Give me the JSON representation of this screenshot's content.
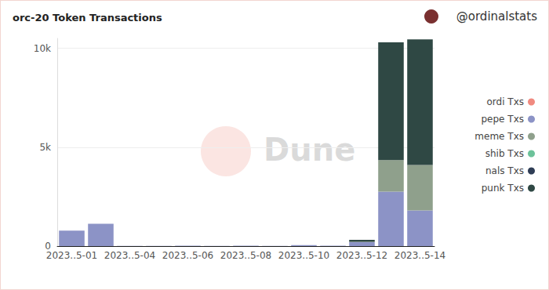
{
  "chart_data": {
    "type": "bar",
    "title": "orc-20 Token Transactions",
    "subtitle": "@ordinalstats",
    "annotations": [
      "Dune"
    ],
    "categories": [
      "2023..5-01",
      null,
      "2023..5-04",
      null,
      "2023..5-06",
      null,
      "2023..5-08",
      null,
      "2023..5-10",
      null,
      "2023..5-12",
      null,
      "2023..5-14"
    ],
    "series": [
      {
        "name": "ordi Txs",
        "color": "#f08a80",
        "values": [
          0,
          0,
          0,
          0,
          0,
          0,
          0,
          0,
          0,
          0,
          0,
          0,
          0
        ]
      },
      {
        "name": "pepe Txs",
        "color": "#8c93c6",
        "values": [
          780,
          1130,
          10,
          10,
          20,
          10,
          15,
          10,
          50,
          20,
          200,
          2750,
          1800
        ]
      },
      {
        "name": "meme Txs",
        "color": "#8fa08c",
        "values": [
          0,
          0,
          0,
          0,
          0,
          0,
          0,
          0,
          0,
          0,
          20,
          1600,
          2300
        ]
      },
      {
        "name": "shib Txs",
        "color": "#6cc29a",
        "values": [
          0,
          0,
          0,
          0,
          0,
          0,
          0,
          0,
          0,
          0,
          0,
          0,
          0
        ]
      },
      {
        "name": "nals Txs",
        "color": "#2f3d55",
        "values": [
          0,
          0,
          0,
          0,
          0,
          0,
          0,
          0,
          0,
          0,
          0,
          0,
          0
        ]
      },
      {
        "name": "punk Txs",
        "color": "#2f4844",
        "values": [
          0,
          0,
          0,
          0,
          0,
          0,
          0,
          0,
          0,
          0,
          100,
          5950,
          6350
        ]
      }
    ],
    "stacked": true,
    "ylim": [
      0,
      10500
    ],
    "yticks": [
      0,
      {
        "value": 5000,
        "label": "5k"
      },
      {
        "value": 10000,
        "label": "10k"
      }
    ],
    "grid": true,
    "legend": "right"
  }
}
